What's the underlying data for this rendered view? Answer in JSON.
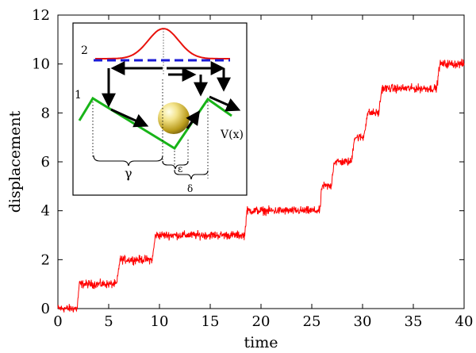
{
  "chart_data": {
    "type": "line",
    "xlabel": "time",
    "ylabel": "displacement",
    "xlim": [
      0,
      40
    ],
    "ylim": [
      0,
      12
    ],
    "xticks": [
      0,
      5,
      10,
      15,
      20,
      25,
      30,
      35,
      40
    ],
    "yticks": [
      0,
      2,
      4,
      6,
      8,
      10,
      12
    ],
    "tick_labels_x": [
      "0",
      "5",
      "10",
      "15",
      "20",
      "25",
      "30",
      "35",
      "40"
    ],
    "tick_labels_y": [
      "0",
      "2",
      "4",
      "6",
      "8",
      "10",
      "12"
    ],
    "grid": false,
    "series": [
      {
        "color": "#ff0000",
        "noise": 0.13,
        "steps": [
          {
            "x_start": 0.0,
            "x_end": 1.9,
            "y": 0.0
          },
          {
            "x_start": 2.1,
            "x_end": 5.8,
            "y": 1.0
          },
          {
            "x_start": 6.1,
            "x_end": 9.3,
            "y": 2.0
          },
          {
            "x_start": 9.6,
            "x_end": 18.4,
            "y": 3.0
          },
          {
            "x_start": 18.6,
            "x_end": 25.8,
            "y": 4.0
          },
          {
            "x_start": 26.0,
            "x_end": 26.9,
            "y": 5.0
          },
          {
            "x_start": 27.2,
            "x_end": 28.9,
            "y": 6.0
          },
          {
            "x_start": 29.2,
            "x_end": 30.1,
            "y": 7.0
          },
          {
            "x_start": 30.5,
            "x_end": 31.6,
            "y": 8.0
          },
          {
            "x_start": 31.9,
            "x_end": 37.3,
            "y": 9.0
          },
          {
            "x_start": 37.6,
            "x_end": 40.0,
            "y": 10.0
          }
        ]
      }
    ]
  },
  "inset": {
    "label_state_2": "2",
    "label_state_1": "1",
    "label_potential": "V(x)",
    "label_gamma": "γ",
    "label_epsilon": "ε",
    "label_delta": "δ",
    "colors": {
      "gaussian": "#e8120c",
      "level2": "#1a1ad6",
      "potential": "#18b418",
      "arrow": "#000000",
      "ball": "#e0c020"
    }
  }
}
